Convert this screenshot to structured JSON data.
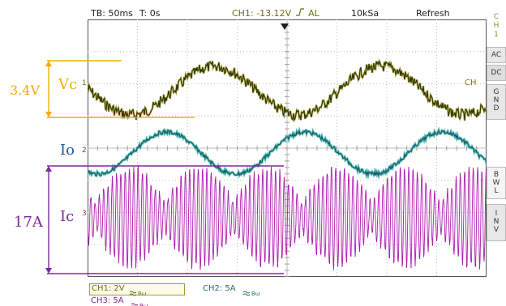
{
  "topbar": {
    "timebase": "TB: 50ms",
    "trigger_time": "T: 0s",
    "trigger": "CH1: -13.12V",
    "trigger_mode": "AL",
    "sample_rate": "10kSa",
    "refresh": "Refresh"
  },
  "side_panel": {
    "channel": [
      "C",
      "H",
      "1"
    ],
    "coupling_ac": "AC",
    "coupling_dc": "DC",
    "coupling_gnd": [
      "G",
      "N",
      "D"
    ],
    "bwl": [
      "B",
      "W",
      "L"
    ],
    "inv": [
      "I",
      "N",
      "V"
    ]
  },
  "channel_box": {
    "ch1": "CH1: 2V",
    "ch2": "CH2: 5A",
    "ch3": "CH3: 5A"
  },
  "markers": {
    "ch1": "1",
    "ch2": "2",
    "ch3": "3",
    "ch_end": "CH"
  },
  "annotations": {
    "vc_label": "Vc",
    "vc_amplitude": "3.4V",
    "io_label": "Io",
    "ic_label": "Ic",
    "ic_amplitude": "17A"
  },
  "colors": {
    "vc": "#2b2b00",
    "vc_glow": "#9c9c1f",
    "io": "#1d4f4f",
    "io_glow": "#33b4b4",
    "ic": "#cc22cc",
    "ic_dark": "#5a1a5a",
    "orange": "#f4ad00",
    "purple": "#7a2a9a",
    "blue": "#1e5aa0"
  }
}
